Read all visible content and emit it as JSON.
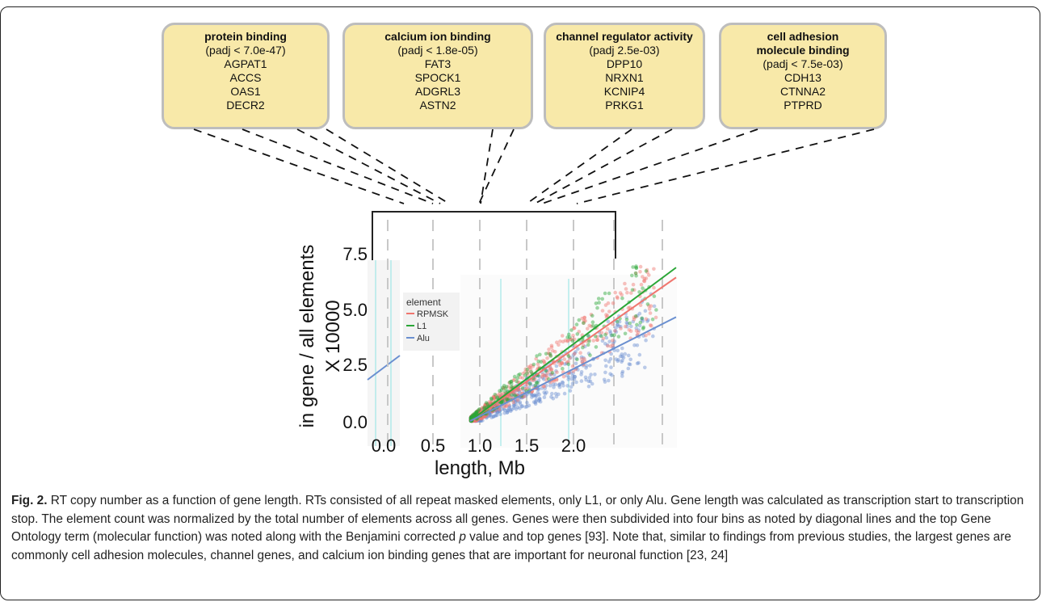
{
  "go_boxes": [
    {
      "term": "protein binding",
      "padj": "(padj < 7.0e-47)",
      "genes": [
        "AGPAT1",
        "ACCS",
        "OAS1",
        "DECR2"
      ]
    },
    {
      "term": "calcium ion binding",
      "padj": "(padj < 1.8e-05)",
      "genes": [
        "FAT3",
        "SPOCK1",
        "ADGRL3",
        "ASTN2"
      ]
    },
    {
      "term": "channel regulator activity",
      "padj": "(padj 2.5e-03)",
      "genes": [
        "DPP10",
        "NRXN1",
        "KCNIP4",
        "PRKG1"
      ]
    },
    {
      "term": "cell adhesion molecule binding",
      "term_lines": [
        "cell adhesion",
        "molecule binding"
      ],
      "padj": "(padj < 7.5e-03)",
      "genes": [
        "CDH13",
        "CTNNA2",
        "PTPRD"
      ]
    }
  ],
  "chart_data": {
    "type": "scatter",
    "xlabel": "length, Mb",
    "ylabel": "in gene / all elements X 10000",
    "ylabel_lines": [
      "in gene / all elements",
      "X 10000"
    ],
    "x_ticks": [
      "0.0",
      "0.5",
      "1.0",
      "1.5",
      "2.0"
    ],
    "y_ticks": [
      "0.0",
      "2.5",
      "5.0",
      "7.5"
    ],
    "xlim": [
      0,
      2.5
    ],
    "ylim": [
      0,
      9
    ],
    "legend": {
      "title": "element",
      "placement": "left-inside",
      "entries": [
        "RPMSK",
        "L1",
        "Alu"
      ]
    },
    "colors": {
      "RPMSK": "#f0766f",
      "L1": "#2aa637",
      "Alu": "#6a8fd0"
    },
    "series": [
      {
        "name": "RPMSK",
        "fit_slope": 2.9
      },
      {
        "name": "L1",
        "fit_slope": 3.1
      },
      {
        "name": "Alu",
        "fit_slope": 2.1
      }
    ]
  },
  "caption": {
    "label": "Fig. 2.",
    "text_before_p": " RT copy number as a function of gene length. RTs consisted of all repeat masked elements, only L1, or only Alu. Gene length was calculated as transcription start to transcription stop. The element count was normalized by the total number of elements across all genes. Genes were then subdivided into four bins as noted by diagonal lines and the top Gene Ontology term (molecular function) was noted along with the Benjamini corrected ",
    "p": "p",
    "text_after_p": " value and top genes [93]. Note that, similar to findings from previous studies, the largest genes are commonly cell adhesion molecules, channel genes, and calcium ion binding genes that are important for neuronal function [23, 24]"
  }
}
